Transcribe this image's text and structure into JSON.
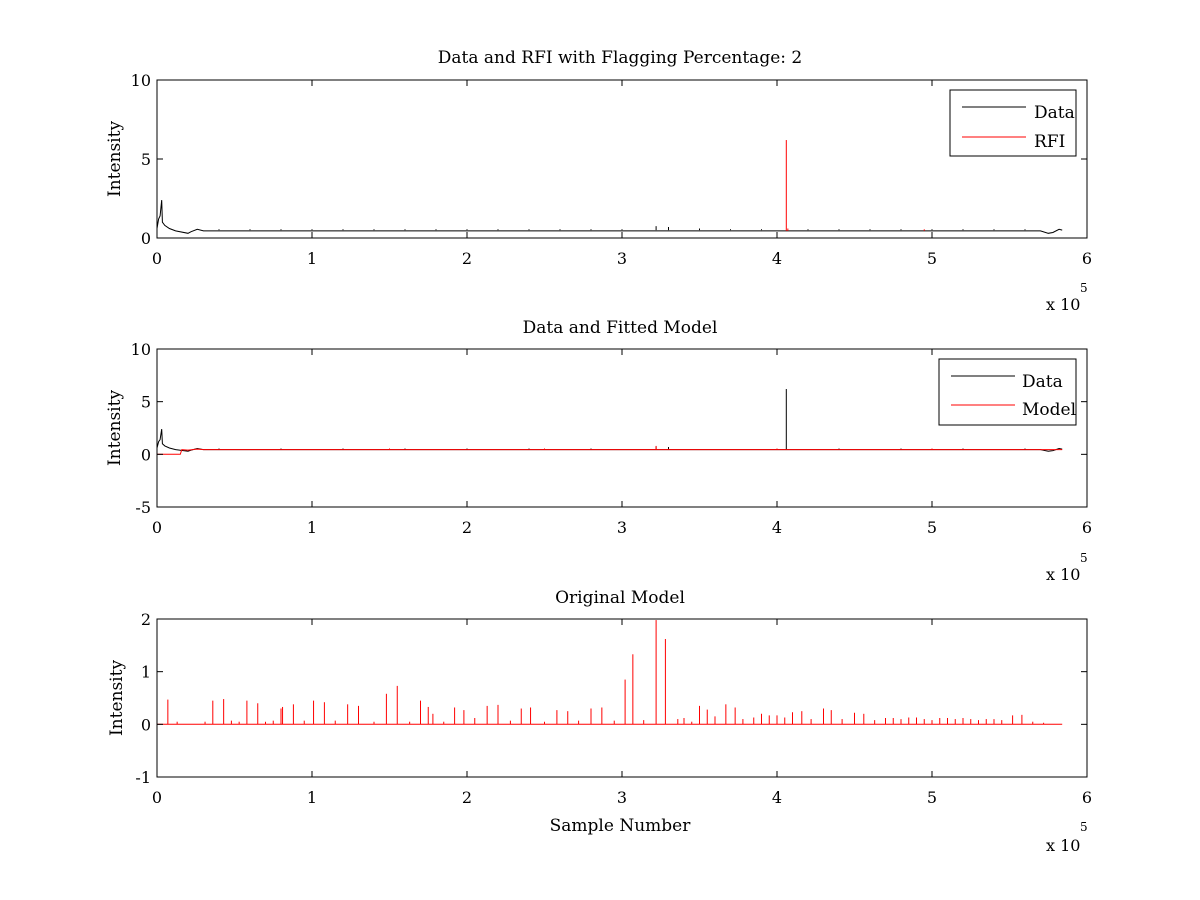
{
  "chart_data": [
    {
      "type": "line",
      "title": "Data and RFI with Flagging Percentage: 2",
      "xlabel": "",
      "ylabel": "Intensity",
      "xlim": [
        0,
        600000
      ],
      "ylim": [
        0,
        10
      ],
      "xticks": [
        "0",
        "1",
        "2",
        "3",
        "4",
        "5",
        "6"
      ],
      "yticks": [
        "0",
        "5",
        "10"
      ],
      "x_multiplier": "x 10",
      "x_multiplier_exp": "5",
      "legend": {
        "position": "top-right",
        "entries": [
          "Data",
          "RFI"
        ]
      },
      "series": [
        {
          "name": "Data",
          "color": "#000000",
          "baseline": 0.5,
          "points": [
            [
              0,
              0.6
            ],
            [
              1000,
              1.2
            ],
            [
              2000,
              1.4
            ],
            [
              3000,
              2.4
            ],
            [
              3500,
              1.0
            ],
            [
              5000,
              0.8
            ],
            [
              8000,
              0.6
            ],
            [
              12000,
              0.45
            ],
            [
              20000,
              0.3
            ],
            [
              22000,
              0.4
            ],
            [
              26000,
              0.55
            ],
            [
              30000,
              0.45
            ],
            [
              100000,
              0.45
            ],
            [
              200000,
              0.45
            ],
            [
              300000,
              0.45
            ],
            [
              400000,
              0.45
            ],
            [
              500000,
              0.45
            ],
            [
              570000,
              0.45
            ],
            [
              575000,
              0.3
            ],
            [
              578000,
              0.35
            ],
            [
              582000,
              0.55
            ],
            [
              584000,
              0.5
            ]
          ],
          "spikes": [
            [
              40000,
              0.55
            ],
            [
              60000,
              0.55
            ],
            [
              80000,
              0.55
            ],
            [
              100000,
              0.55
            ],
            [
              120000,
              0.55
            ],
            [
              140000,
              0.55
            ],
            [
              160000,
              0.55
            ],
            [
              180000,
              0.55
            ],
            [
              200000,
              0.55
            ],
            [
              220000,
              0.55
            ],
            [
              240000,
              0.55
            ],
            [
              260000,
              0.55
            ],
            [
              280000,
              0.55
            ],
            [
              300000,
              0.55
            ],
            [
              322000,
              0.75
            ],
            [
              330000,
              0.7
            ],
            [
              350000,
              0.6
            ],
            [
              370000,
              0.55
            ],
            [
              390000,
              0.55
            ],
            [
              420000,
              0.55
            ],
            [
              440000,
              0.55
            ],
            [
              460000,
              0.55
            ],
            [
              480000,
              0.55
            ],
            [
              500000,
              0.55
            ],
            [
              520000,
              0.55
            ],
            [
              540000,
              0.55
            ],
            [
              560000,
              0.55
            ]
          ]
        },
        {
          "name": "RFI",
          "color": "#ff0000",
          "spikes": [
            [
              406000,
              6.2
            ],
            [
              407000,
              0.6
            ],
            [
              495000,
              0.55
            ]
          ]
        }
      ]
    },
    {
      "type": "line",
      "title": "Data and Fitted Model",
      "xlabel": "",
      "ylabel": "Intensity",
      "xlim": [
        0,
        600000
      ],
      "ylim": [
        -5,
        10
      ],
      "xticks": [
        "0",
        "1",
        "2",
        "3",
        "4",
        "5",
        "6"
      ],
      "yticks": [
        "-5",
        "0",
        "5",
        "10"
      ],
      "x_multiplier": "x 10",
      "x_multiplier_exp": "5",
      "legend": {
        "position": "top-right",
        "entries": [
          "Data",
          "Model"
        ]
      },
      "series": [
        {
          "name": "Data",
          "color": "#000000",
          "baseline": 0.45,
          "points": [
            [
              0,
              0.6
            ],
            [
              1000,
              1.2
            ],
            [
              2000,
              1.4
            ],
            [
              3000,
              2.4
            ],
            [
              3500,
              1.0
            ],
            [
              5000,
              0.8
            ],
            [
              8000,
              0.6
            ],
            [
              12000,
              0.45
            ],
            [
              20000,
              0.3
            ],
            [
              22000,
              0.4
            ],
            [
              26000,
              0.55
            ],
            [
              30000,
              0.45
            ],
            [
              100000,
              0.45
            ],
            [
              200000,
              0.45
            ],
            [
              300000,
              0.45
            ],
            [
              400000,
              0.45
            ],
            [
              500000,
              0.45
            ],
            [
              570000,
              0.45
            ],
            [
              575000,
              0.3
            ],
            [
              578000,
              0.35
            ],
            [
              582000,
              0.55
            ],
            [
              584000,
              0.5
            ]
          ],
          "spikes": [
            [
              40000,
              0.55
            ],
            [
              80000,
              0.55
            ],
            [
              120000,
              0.55
            ],
            [
              160000,
              0.55
            ],
            [
              200000,
              0.55
            ],
            [
              240000,
              0.55
            ],
            [
              280000,
              0.55
            ],
            [
              322000,
              0.75
            ],
            [
              330000,
              0.7
            ],
            [
              406000,
              6.2
            ],
            [
              440000,
              0.55
            ],
            [
              480000,
              0.55
            ],
            [
              520000,
              0.55
            ],
            [
              560000,
              0.55
            ]
          ]
        },
        {
          "name": "Model",
          "color": "#ff0000",
          "points": [
            [
              0,
              0.0
            ],
            [
              15000,
              0.0
            ],
            [
              16000,
              0.45
            ],
            [
              20000,
              0.4
            ],
            [
              26000,
              0.5
            ],
            [
              30000,
              0.45
            ],
            [
              584000,
              0.45
            ]
          ],
          "spikes": [
            [
              150000,
              0.55
            ],
            [
              250000,
              0.55
            ],
            [
              322000,
              0.8
            ],
            [
              400000,
              0.55
            ],
            [
              500000,
              0.55
            ]
          ]
        }
      ]
    },
    {
      "type": "line",
      "title": "Original Model",
      "xlabel": "Sample Number",
      "ylabel": "Intensity",
      "xlim": [
        0,
        600000
      ],
      "ylim": [
        -1,
        2
      ],
      "xticks": [
        "0",
        "1",
        "2",
        "3",
        "4",
        "5",
        "6"
      ],
      "yticks": [
        "-1",
        "0",
        "1",
        "2"
      ],
      "x_multiplier": "x 10",
      "x_multiplier_exp": "5",
      "series": [
        {
          "color": "#ff0000",
          "baseline": 0.0,
          "points": [
            [
              0,
              0
            ],
            [
              584000,
              0
            ]
          ],
          "spikes": [
            [
              7000,
              0.47
            ],
            [
              13000,
              0.05
            ],
            [
              31000,
              0.05
            ],
            [
              36000,
              0.45
            ],
            [
              43000,
              0.48
            ],
            [
              48000,
              0.07
            ],
            [
              53000,
              0.05
            ],
            [
              58000,
              0.45
            ],
            [
              65000,
              0.4
            ],
            [
              70000,
              0.05
            ],
            [
              75000,
              0.07
            ],
            [
              80000,
              0.3
            ],
            [
              81000,
              0.33
            ],
            [
              88000,
              0.38
            ],
            [
              95000,
              0.07
            ],
            [
              101000,
              0.45
            ],
            [
              108000,
              0.42
            ],
            [
              115000,
              0.07
            ],
            [
              123000,
              0.38
            ],
            [
              130000,
              0.35
            ],
            [
              140000,
              0.05
            ],
            [
              148000,
              0.58
            ],
            [
              155000,
              0.73
            ],
            [
              163000,
              0.05
            ],
            [
              170000,
              0.45
            ],
            [
              175000,
              0.33
            ],
            [
              178000,
              0.2
            ],
            [
              185000,
              0.05
            ],
            [
              192000,
              0.32
            ],
            [
              198000,
              0.27
            ],
            [
              205000,
              0.12
            ],
            [
              213000,
              0.35
            ],
            [
              220000,
              0.37
            ],
            [
              228000,
              0.07
            ],
            [
              235000,
              0.3
            ],
            [
              241000,
              0.32
            ],
            [
              250000,
              0.05
            ],
            [
              258000,
              0.27
            ],
            [
              265000,
              0.25
            ],
            [
              272000,
              0.07
            ],
            [
              280000,
              0.3
            ],
            [
              287000,
              0.32
            ],
            [
              295000,
              0.07
            ],
            [
              302000,
              0.85
            ],
            [
              307000,
              1.33
            ],
            [
              314000,
              0.08
            ],
            [
              322000,
              1.98
            ],
            [
              328000,
              1.62
            ],
            [
              336000,
              0.1
            ],
            [
              340000,
              0.12
            ],
            [
              345000,
              0.05
            ],
            [
              350000,
              0.35
            ],
            [
              355000,
              0.28
            ],
            [
              360000,
              0.15
            ],
            [
              367000,
              0.38
            ],
            [
              373000,
              0.32
            ],
            [
              378000,
              0.1
            ],
            [
              385000,
              0.13
            ],
            [
              390000,
              0.2
            ],
            [
              395000,
              0.17
            ],
            [
              400000,
              0.17
            ],
            [
              405000,
              0.13
            ],
            [
              410000,
              0.23
            ],
            [
              416000,
              0.25
            ],
            [
              422000,
              0.1
            ],
            [
              430000,
              0.3
            ],
            [
              435000,
              0.27
            ],
            [
              442000,
              0.1
            ],
            [
              450000,
              0.22
            ],
            [
              456000,
              0.2
            ],
            [
              463000,
              0.08
            ],
            [
              470000,
              0.12
            ],
            [
              475000,
              0.12
            ],
            [
              480000,
              0.1
            ],
            [
              485000,
              0.13
            ],
            [
              490000,
              0.13
            ],
            [
              495000,
              0.1
            ],
            [
              500000,
              0.08
            ],
            [
              505000,
              0.12
            ],
            [
              510000,
              0.12
            ],
            [
              515000,
              0.1
            ],
            [
              520000,
              0.12
            ],
            [
              525000,
              0.1
            ],
            [
              530000,
              0.08
            ],
            [
              535000,
              0.1
            ],
            [
              540000,
              0.1
            ],
            [
              545000,
              0.08
            ],
            [
              552000,
              0.17
            ],
            [
              558000,
              0.18
            ],
            [
              565000,
              0.05
            ],
            [
              572000,
              0.03
            ]
          ]
        }
      ]
    }
  ]
}
